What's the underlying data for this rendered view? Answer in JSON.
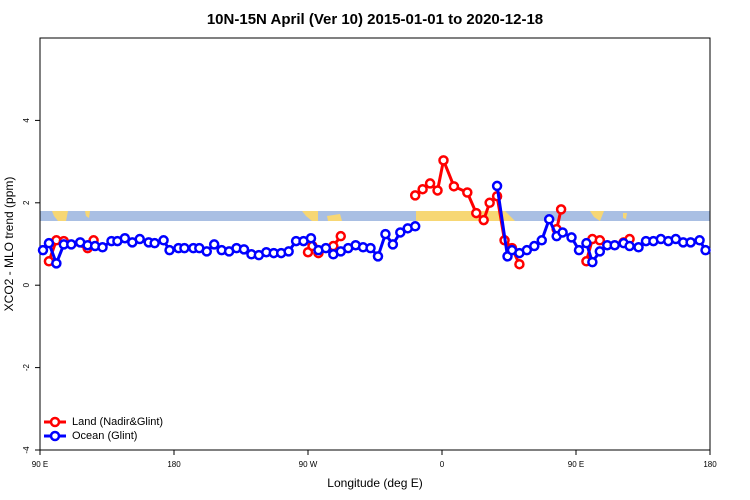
{
  "chart_data": {
    "type": "line",
    "title": "10N-15N April (Ver 10)   2015-01-01 to 2020-12-18",
    "xlabel": "Longitude (deg E)",
    "ylabel": "XCO2 - MLO trend (ppm)",
    "xlim": [
      90,
      540
    ],
    "ylim": [
      -4,
      6
    ],
    "xticks": [
      {
        "value": 90,
        "label": "90 E"
      },
      180,
      {
        "value": 270,
        "label": "90 W"
      },
      {
        "value": 360,
        "label": "0"
      },
      {
        "value": 450,
        "label": "90 E"
      },
      {
        "value": 540,
        "label": "180"
      }
    ],
    "yticks": [
      -4,
      -2,
      0,
      2,
      4
    ],
    "legend": "bottom-left",
    "series": [
      {
        "name": "Land (Nadir&Glint)",
        "color": "#ff0000",
        "x": [
          96,
          101,
          106,
          122,
          126,
          200,
          270,
          273,
          277,
          287,
          292,
          320,
          342,
          347,
          352,
          357,
          361,
          368,
          377,
          383,
          388,
          392,
          397,
          402,
          407,
          412,
          425,
          437,
          440,
          450,
          457,
          461,
          466,
          475,
          482,
          486
        ],
        "values": [
          0.58,
          1.09,
          1.07,
          0.9,
          1.09,
          null,
          0.8,
          0.95,
          0.78,
          0.95,
          1.19,
          null,
          2.18,
          2.33,
          2.47,
          2.3,
          3.03,
          2.4,
          2.25,
          1.75,
          1.58,
          2.0,
          2.16,
          1.09,
          0.9,
          0.51,
          null,
          1.36,
          1.84,
          null,
          0.58,
          1.12,
          1.09,
          null,
          1.04,
          1.12
        ]
      },
      {
        "name": "Ocean (Glint)",
        "color": "#0000ff",
        "x": [
          92,
          96,
          101,
          106,
          111,
          117,
          122,
          127,
          132,
          138,
          142,
          147,
          152,
          157,
          163,
          167,
          173,
          177,
          183,
          187,
          193,
          197,
          202,
          207,
          212,
          217,
          222,
          227,
          232,
          237,
          242,
          247,
          252,
          257,
          262,
          267,
          272,
          277,
          282,
          287,
          292,
          297,
          302,
          307,
          312,
          317,
          322,
          327,
          332,
          337,
          342,
          370,
          397,
          404,
          407,
          412,
          417,
          422,
          427,
          432,
          437,
          441,
          447,
          452,
          457,
          461,
          466,
          471,
          476,
          482,
          486,
          492,
          497,
          502,
          507,
          512,
          517,
          522,
          527,
          533,
          537
        ],
        "values": [
          0.85,
          1.02,
          0.53,
          0.99,
          0.99,
          1.04,
          0.97,
          0.95,
          0.92,
          1.07,
          1.07,
          1.14,
          1.04,
          1.12,
          1.04,
          1.02,
          1.09,
          0.85,
          0.9,
          0.9,
          0.9,
          0.9,
          0.82,
          0.99,
          0.85,
          0.82,
          0.9,
          0.87,
          0.75,
          0.73,
          0.8,
          0.78,
          0.78,
          0.82,
          1.07,
          1.07,
          1.14,
          0.85,
          0.9,
          0.75,
          0.82,
          0.9,
          0.97,
          0.92,
          0.9,
          0.7,
          1.24,
          0.99,
          1.28,
          1.38,
          1.43,
          null,
          2.41,
          0.7,
          0.85,
          0.78,
          0.85,
          0.95,
          1.09,
          1.6,
          1.19,
          1.28,
          1.16,
          0.85,
          1.02,
          0.56,
          0.82,
          0.97,
          0.97,
          1.02,
          0.95,
          0.92,
          1.07,
          1.07,
          1.12,
          1.07,
          1.12,
          1.04,
          1.04,
          1.09,
          0.85
        ]
      }
    ]
  }
}
